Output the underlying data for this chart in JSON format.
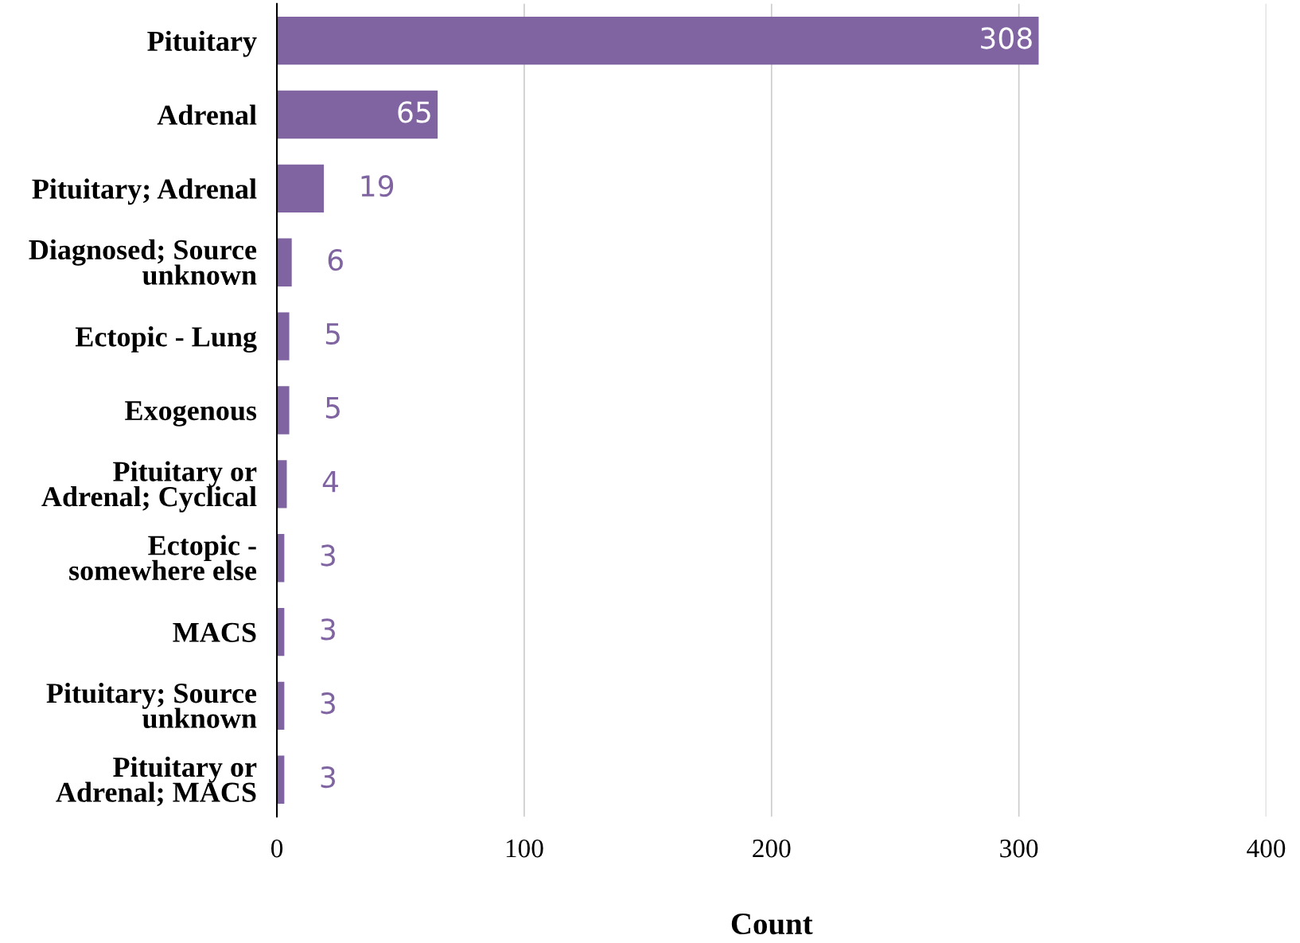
{
  "chart_data": {
    "type": "bar",
    "orientation": "horizontal",
    "xlabel": "Count",
    "categories": [
      "Pituitary",
      "Adrenal",
      "Pituitary; Adrenal",
      "Diagnosed; Source\nunknown",
      "Ectopic - Lung",
      "Exogenous",
      "Pituitary or\nAdrenal; Cyclical",
      "Ectopic -\nsomewhere else",
      "MACS",
      "Pituitary; Source\nunknown",
      "Pituitary or\nAdrenal; MACS"
    ],
    "values": [
      308,
      65,
      19,
      6,
      5,
      5,
      4,
      3,
      3,
      3,
      3
    ],
    "color": "#8064a2",
    "xlim": [
      0,
      400
    ],
    "xticks": [
      0,
      100,
      200,
      300,
      400
    ],
    "grid": "x",
    "data_labels": true
  }
}
